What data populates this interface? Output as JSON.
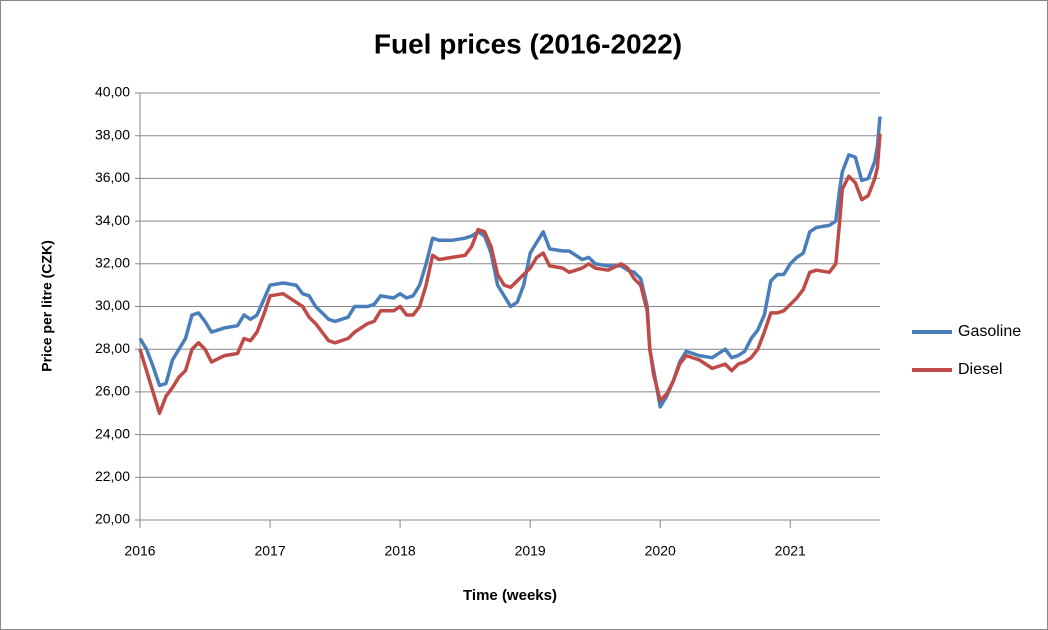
{
  "chart_data": {
    "type": "line",
    "title": "Fuel prices (2016-2022)",
    "x_label": "Time (weeks)",
    "y_label": "Price per litre (CZK)",
    "x": [
      2016.0,
      2016.05,
      2016.1,
      2016.15,
      2016.2,
      2016.25,
      2016.3,
      2016.35,
      2016.4,
      2016.45,
      2016.5,
      2016.55,
      2016.65,
      2016.75,
      2016.8,
      2016.85,
      2016.9,
      2016.95,
      2017.0,
      2017.1,
      2017.2,
      2017.25,
      2017.3,
      2017.35,
      2017.45,
      2017.5,
      2017.6,
      2017.65,
      2017.75,
      2017.8,
      2017.85,
      2017.95,
      2018.0,
      2018.05,
      2018.1,
      2018.15,
      2018.2,
      2018.25,
      2018.3,
      2018.4,
      2018.5,
      2018.55,
      2018.6,
      2018.65,
      2018.7,
      2018.75,
      2018.8,
      2018.85,
      2018.9,
      2018.95,
      2019.0,
      2019.05,
      2019.1,
      2019.15,
      2019.25,
      2019.3,
      2019.4,
      2019.45,
      2019.5,
      2019.6,
      2019.7,
      2019.75,
      2019.8,
      2019.85,
      2019.9,
      2019.92,
      2019.95,
      2020.0,
      2020.05,
      2020.1,
      2020.15,
      2020.2,
      2020.3,
      2020.4,
      2020.5,
      2020.55,
      2020.6,
      2020.65,
      2020.7,
      2020.75,
      2020.8,
      2020.85,
      2020.9,
      2020.95,
      2021.0,
      2021.05,
      2021.1,
      2021.15,
      2021.2,
      2021.3,
      2021.35,
      2021.38,
      2021.4,
      2021.45,
      2021.5,
      2021.55,
      2021.6,
      2021.65,
      2021.67,
      2021.69
    ],
    "series": [
      {
        "name": "Gasoline",
        "color": "#4a7ebb",
        "values": [
          28.5,
          28.0,
          27.2,
          26.3,
          26.4,
          27.5,
          28.0,
          28.5,
          29.6,
          29.7,
          29.3,
          28.8,
          29.0,
          29.1,
          29.6,
          29.4,
          29.6,
          30.3,
          31.0,
          31.1,
          31.0,
          30.6,
          30.5,
          30.0,
          29.4,
          29.3,
          29.5,
          30.0,
          30.0,
          30.1,
          30.5,
          30.4,
          30.6,
          30.4,
          30.5,
          31.0,
          32.0,
          33.2,
          33.1,
          33.1,
          33.2,
          33.3,
          33.5,
          33.3,
          32.5,
          31.0,
          30.5,
          30.0,
          30.2,
          31.0,
          32.5,
          33.0,
          33.5,
          32.7,
          32.6,
          32.6,
          32.2,
          32.3,
          32.0,
          31.9,
          31.9,
          31.7,
          31.6,
          31.3,
          30.0,
          28.0,
          27.0,
          25.3,
          25.8,
          26.5,
          27.4,
          27.9,
          27.7,
          27.6,
          28.0,
          27.6,
          27.7,
          27.9,
          28.5,
          28.9,
          29.6,
          31.2,
          31.5,
          31.5,
          32.0,
          32.3,
          32.5,
          33.5,
          33.7,
          33.8,
          34.0,
          35.5,
          36.3,
          37.1,
          37.0,
          35.9,
          36.0,
          36.8,
          37.5,
          38.9
        ]
      },
      {
        "name": "Diesel",
        "color": "#be4b48",
        "values": [
          28.0,
          27.0,
          26.0,
          25.0,
          25.8,
          26.2,
          26.7,
          27.0,
          28.0,
          28.3,
          28.0,
          27.4,
          27.7,
          27.8,
          28.5,
          28.4,
          28.8,
          29.6,
          30.5,
          30.6,
          30.2,
          30.0,
          29.5,
          29.2,
          28.4,
          28.3,
          28.5,
          28.8,
          29.2,
          29.3,
          29.8,
          29.8,
          30.0,
          29.6,
          29.6,
          30.0,
          31.0,
          32.4,
          32.2,
          32.3,
          32.4,
          32.8,
          33.6,
          33.5,
          32.8,
          31.5,
          31.0,
          30.9,
          31.2,
          31.5,
          31.8,
          32.3,
          32.5,
          31.9,
          31.8,
          31.6,
          31.8,
          32.0,
          31.8,
          31.7,
          32.0,
          31.8,
          31.3,
          31.0,
          29.8,
          28.0,
          26.8,
          25.6,
          25.9,
          26.5,
          27.3,
          27.7,
          27.5,
          27.1,
          27.3,
          27.0,
          27.3,
          27.4,
          27.6,
          28.0,
          28.8,
          29.7,
          29.7,
          29.8,
          30.1,
          30.4,
          30.8,
          31.6,
          31.7,
          31.6,
          32.0,
          34.0,
          35.5,
          36.1,
          35.8,
          35.0,
          35.2,
          36.0,
          36.5,
          38.1
        ]
      }
    ],
    "xlim": [
      2016,
      2021.69
    ],
    "xticks": [
      2016,
      2017,
      2018,
      2019,
      2020,
      2021
    ],
    "ylim": [
      20,
      40
    ],
    "yticks": [
      {
        "value": 20,
        "label": "20,00"
      },
      {
        "value": 22,
        "label": "22,00"
      },
      {
        "value": 24,
        "label": "24,00"
      },
      {
        "value": 26,
        "label": "26,00"
      },
      {
        "value": 28,
        "label": "28,00"
      },
      {
        "value": 30,
        "label": "30,00"
      },
      {
        "value": 32,
        "label": "32,00"
      },
      {
        "value": 34,
        "label": "34,00"
      },
      {
        "value": 36,
        "label": "36,00"
      },
      {
        "value": 38,
        "label": "38,00"
      },
      {
        "value": 40,
        "label": "40,00"
      }
    ],
    "grid": true,
    "legend": "right"
  }
}
